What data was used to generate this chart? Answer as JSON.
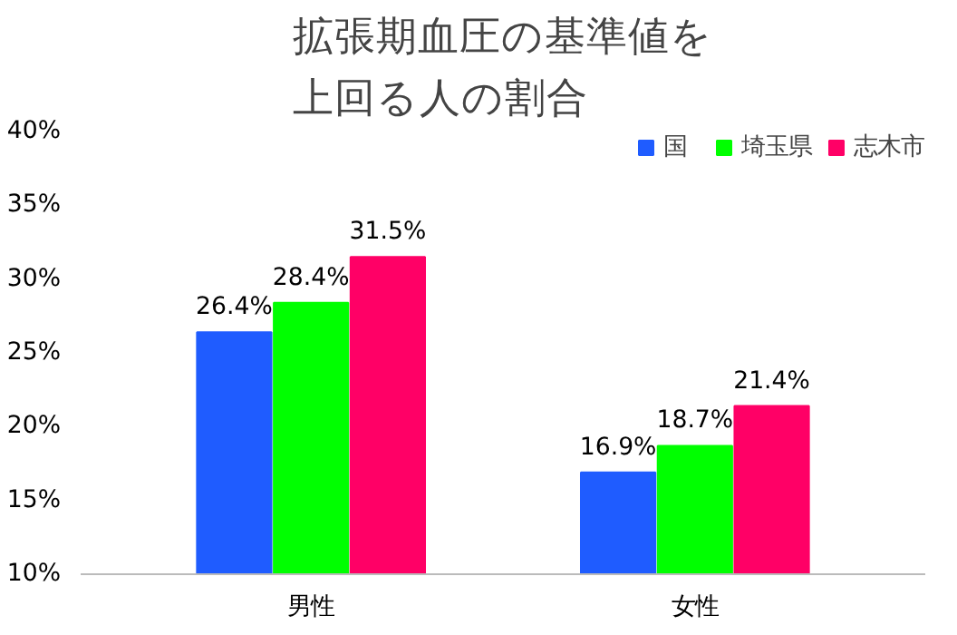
{
  "chart_data": {
    "type": "bar",
    "title": "拡張期血圧の基準値を上回る人の割合",
    "categories": [
      "男性",
      "女性"
    ],
    "series": [
      {
        "name": "国",
        "color": "#1f5cff",
        "values": [
          26.4,
          16.9
        ],
        "value_labels": [
          "26.4%",
          "16.9%"
        ]
      },
      {
        "name": "埼玉県",
        "color": "#00ff00",
        "values": [
          28.4,
          18.7
        ],
        "value_labels": [
          "28.4%",
          "18.7%"
        ]
      },
      {
        "name": "志木市",
        "color": "#ff0066",
        "values": [
          31.5,
          21.4
        ],
        "value_labels": [
          "31.5%",
          "21.4%"
        ]
      }
    ],
    "ylim": [
      10,
      40
    ],
    "yticks": [
      {
        "value": 10,
        "label": "10%"
      },
      {
        "value": 15,
        "label": "15%"
      },
      {
        "value": 20,
        "label": "20%"
      },
      {
        "value": 25,
        "label": "25%"
      },
      {
        "value": 30,
        "label": "30%"
      },
      {
        "value": 35,
        "label": "35%"
      },
      {
        "value": 40,
        "label": "40%"
      }
    ],
    "legend": "top right",
    "grid": false
  }
}
